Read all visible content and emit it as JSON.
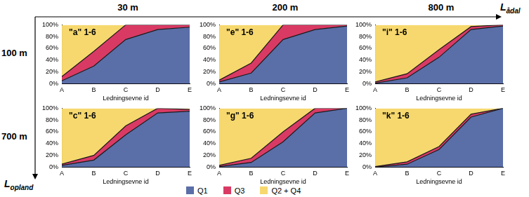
{
  "column_titles": [
    "30 m",
    "200 m",
    "800 m"
  ],
  "row_titles": [
    "100 m",
    "700 m"
  ],
  "x_arrow": {
    "text": "L",
    "subscript": "ådal"
  },
  "y_arrow": {
    "text": "L",
    "subscript": "opland"
  },
  "chart_data": [
    {
      "type": "area",
      "title": "\"a\" 1-6",
      "xlabel": "Ledningsevne id",
      "stacked": true,
      "grid": false,
      "categories": [
        "A",
        "B",
        "C",
        "D",
        "E"
      ],
      "ylim": [
        0,
        100
      ],
      "yticks": [
        {
          "value": 0,
          "label": "0%"
        },
        {
          "value": 20,
          "label": "20%"
        },
        {
          "value": 40,
          "label": "40%"
        },
        {
          "value": 60,
          "label": "60%"
        },
        {
          "value": 80,
          "label": "80%"
        },
        {
          "value": 100,
          "label": "100%"
        }
      ],
      "series": [
        {
          "name": "Q1",
          "color": "#5a6ea8",
          "values": [
            5,
            30,
            75,
            92,
            96
          ]
        },
        {
          "name": "Q3",
          "color": "#d93a64",
          "values": [
            7,
            25,
            25,
            8,
            4
          ]
        },
        {
          "name": "Q2 + Q4",
          "color": "#f6d86e",
          "values": [
            88,
            45,
            0,
            0,
            0
          ]
        }
      ]
    },
    {
      "type": "area",
      "title": "\"e\" 1-6",
      "xlabel": "Ledningsevne id",
      "stacked": true,
      "grid": false,
      "categories": [
        "A",
        "B",
        "C",
        "D",
        "E"
      ],
      "ylim": [
        0,
        100
      ],
      "yticks": [
        {
          "value": 0,
          "label": "0%"
        },
        {
          "value": 20,
          "label": "20%"
        },
        {
          "value": 40,
          "label": "40%"
        },
        {
          "value": 60,
          "label": "60%"
        },
        {
          "value": 80,
          "label": "80%"
        },
        {
          "value": 100,
          "label": "100%"
        }
      ],
      "series": [
        {
          "name": "Q1",
          "color": "#5a6ea8",
          "values": [
            3,
            18,
            75,
            92,
            98
          ]
        },
        {
          "name": "Q3",
          "color": "#d93a64",
          "values": [
            3,
            17,
            25,
            8,
            2
          ]
        },
        {
          "name": "Q2 + Q4",
          "color": "#f6d86e",
          "values": [
            94,
            65,
            0,
            0,
            0
          ]
        }
      ]
    },
    {
      "type": "area",
      "title": "\"i\" 1-6",
      "xlabel": "Ledningsevne id",
      "stacked": true,
      "grid": false,
      "categories": [
        "A",
        "B",
        "C",
        "D",
        "E"
      ],
      "ylim": [
        0,
        100
      ],
      "yticks": [
        {
          "value": 0,
          "label": "0%"
        },
        {
          "value": 20,
          "label": "20%"
        },
        {
          "value": 40,
          "label": "40%"
        },
        {
          "value": 60,
          "label": "60%"
        },
        {
          "value": 80,
          "label": "80%"
        },
        {
          "value": 100,
          "label": "100%"
        }
      ],
      "series": [
        {
          "name": "Q1",
          "color": "#5a6ea8",
          "values": [
            1,
            10,
            45,
            92,
            98
          ]
        },
        {
          "name": "Q3",
          "color": "#d93a64",
          "values": [
            2,
            7,
            13,
            5,
            2
          ]
        },
        {
          "name": "Q2 + Q4",
          "color": "#f6d86e",
          "values": [
            97,
            83,
            42,
            3,
            0
          ]
        }
      ]
    },
    {
      "type": "area",
      "title": "\"c\" 1-6",
      "xlabel": "Ledningsevne id",
      "stacked": true,
      "grid": false,
      "categories": [
        "A",
        "B",
        "C",
        "D",
        "E"
      ],
      "ylim": [
        0,
        100
      ],
      "yticks": [
        {
          "value": 0,
          "label": "0%"
        },
        {
          "value": 20,
          "label": "20%"
        },
        {
          "value": 40,
          "label": "40%"
        },
        {
          "value": 60,
          "label": "60%"
        },
        {
          "value": 80,
          "label": "80%"
        },
        {
          "value": 100,
          "label": "100%"
        }
      ],
      "series": [
        {
          "name": "Q1",
          "color": "#5a6ea8",
          "values": [
            3,
            12,
            55,
            92,
            95
          ]
        },
        {
          "name": "Q3",
          "color": "#d93a64",
          "values": [
            2,
            8,
            15,
            8,
            3
          ]
        },
        {
          "name": "Q2 + Q4",
          "color": "#f6d86e",
          "values": [
            95,
            80,
            30,
            0,
            2
          ]
        }
      ]
    },
    {
      "type": "area",
      "title": "\"g\" 1-6",
      "xlabel": "Ledningsevne id",
      "stacked": true,
      "grid": false,
      "categories": [
        "A",
        "B",
        "C",
        "D",
        "E"
      ],
      "ylim": [
        0,
        100
      ],
      "yticks": [
        {
          "value": 0,
          "label": "0%"
        },
        {
          "value": 20,
          "label": "20%"
        },
        {
          "value": 40,
          "label": "40%"
        },
        {
          "value": 60,
          "label": "60%"
        },
        {
          "value": 80,
          "label": "80%"
        },
        {
          "value": 100,
          "label": "100%"
        }
      ],
      "series": [
        {
          "name": "Q1",
          "color": "#5a6ea8",
          "values": [
            1,
            8,
            43,
            92,
            100
          ]
        },
        {
          "name": "Q3",
          "color": "#d93a64",
          "values": [
            2,
            7,
            17,
            8,
            0
          ]
        },
        {
          "name": "Q2 + Q4",
          "color": "#f6d86e",
          "values": [
            97,
            85,
            40,
            0,
            0
          ]
        }
      ]
    },
    {
      "type": "area",
      "title": "\"k\" 1-6",
      "xlabel": "Ledningsevne id",
      "stacked": true,
      "grid": false,
      "categories": [
        "A",
        "B",
        "C",
        "D",
        "E"
      ],
      "ylim": [
        0,
        100
      ],
      "yticks": [
        {
          "value": 0,
          "label": "0%"
        },
        {
          "value": 20,
          "label": "20%"
        },
        {
          "value": 40,
          "label": "40%"
        },
        {
          "value": 60,
          "label": "60%"
        },
        {
          "value": 80,
          "label": "80%"
        },
        {
          "value": 100,
          "label": "100%"
        }
      ],
      "series": [
        {
          "name": "Q1",
          "color": "#5a6ea8",
          "values": [
            0,
            5,
            30,
            85,
            100
          ]
        },
        {
          "name": "Q3",
          "color": "#d93a64",
          "values": [
            1,
            4,
            5,
            5,
            0
          ]
        },
        {
          "name": "Q2 + Q4",
          "color": "#f6d86e",
          "values": [
            99,
            91,
            65,
            10,
            0
          ]
        }
      ]
    }
  ]
}
